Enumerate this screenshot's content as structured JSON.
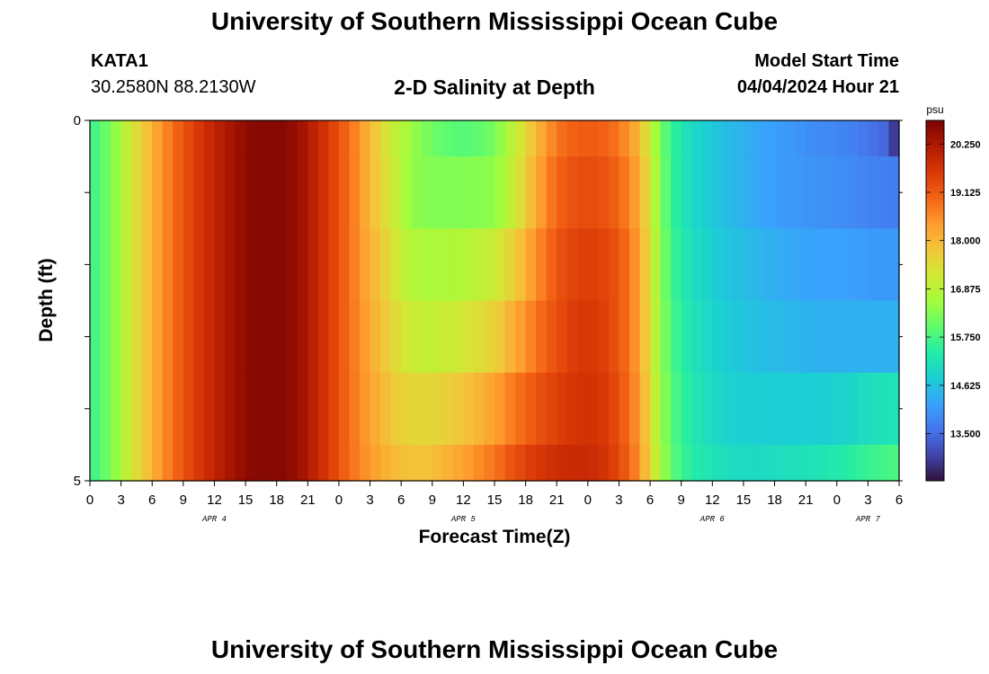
{
  "header": {
    "title": "University of Southern Mississippi Ocean Cube",
    "station_id": "KATA1",
    "station_coords": "30.2580N  88.2130W",
    "model_start_label": "Model Start Time",
    "model_start_value": "04/04/2024 Hour 21"
  },
  "footer": {
    "title": "University of Southern Mississippi Ocean Cube"
  },
  "chart_data": {
    "type": "heatmap",
    "title": "2-D Salinity at Depth",
    "xlabel": "Forecast Time(Z)",
    "ylabel": "Depth (ft)",
    "x_tick_labels": [
      "0",
      "3",
      "6",
      "9",
      "12",
      "15",
      "18",
      "21",
      "0",
      "3",
      "6",
      "9",
      "12",
      "15",
      "18",
      "21",
      "0",
      "3",
      "6",
      "9",
      "12",
      "15",
      "18",
      "21",
      "0",
      "3",
      "6"
    ],
    "day_labels": [
      {
        "label": "APR 4",
        "tick_index": 4
      },
      {
        "label": "APR 5",
        "tick_index": 12
      },
      {
        "label": "APR 6",
        "tick_index": 20
      },
      {
        "label": "APR 7",
        "tick_index": 25
      }
    ],
    "y_tick_labels": [
      "0",
      "5"
    ],
    "ylim": [
      0,
      5
    ],
    "x_range_hours": [
      0,
      78
    ],
    "colorbar": {
      "unit": "psu",
      "tick_labels": [
        "20.250",
        "19.125",
        "18.000",
        "16.875",
        "15.750",
        "14.625",
        "13.500"
      ],
      "tick_values": [
        20.25,
        19.125,
        18.0,
        16.875,
        15.75,
        14.625,
        13.5
      ],
      "range": [
        12.4,
        20.8
      ],
      "colors": [
        "#30123b",
        "#4145ab",
        "#4675ed",
        "#39a2fc",
        "#1bcfd4",
        "#24eca6",
        "#61fc6c",
        "#a4fc3b",
        "#d1e834",
        "#f3c63a",
        "#fe9b2d",
        "#f36315",
        "#d93806",
        "#b11901",
        "#7a0402"
      ]
    },
    "depth_layers": [
      {
        "depth_range": [
          0,
          0.5
        ],
        "points": [
          [
            0,
            15.6
          ],
          [
            2,
            16.2
          ],
          [
            4,
            17.2
          ],
          [
            6,
            18.1
          ],
          [
            8,
            18.9
          ],
          [
            10,
            19.5
          ],
          [
            12,
            20.0
          ],
          [
            14,
            20.4
          ],
          [
            15,
            20.6
          ],
          [
            18,
            20.7
          ],
          [
            20,
            20.5
          ],
          [
            21,
            20.2
          ],
          [
            23,
            19.6
          ],
          [
            25,
            18.9
          ],
          [
            27,
            18.0
          ],
          [
            29,
            17.1
          ],
          [
            31,
            16.5
          ],
          [
            33,
            16.1
          ],
          [
            35,
            15.9
          ],
          [
            37,
            15.9
          ],
          [
            39,
            16.2
          ],
          [
            41,
            17.0
          ],
          [
            43,
            18.0
          ],
          [
            45,
            18.8
          ],
          [
            47,
            19.1
          ],
          [
            49,
            19.1
          ],
          [
            51,
            18.8
          ],
          [
            53,
            18.0
          ],
          [
            54,
            17.0
          ],
          [
            55,
            16.2
          ],
          [
            56,
            15.6
          ],
          [
            58,
            15.0
          ],
          [
            61,
            14.6
          ],
          [
            64,
            14.3
          ],
          [
            67,
            14.1
          ],
          [
            70,
            13.9
          ],
          [
            73,
            13.8
          ],
          [
            75,
            13.6
          ],
          [
            77,
            13.4
          ],
          [
            77.5,
            12.9
          ],
          [
            78,
            12.6
          ]
        ]
      },
      {
        "depth_range": [
          0.5,
          1.5
        ],
        "points": [
          [
            0,
            15.6
          ],
          [
            2,
            16.2
          ],
          [
            4,
            17.2
          ],
          [
            6,
            18.1
          ],
          [
            8,
            18.9
          ],
          [
            10,
            19.5
          ],
          [
            12,
            20.0
          ],
          [
            14,
            20.4
          ],
          [
            15,
            20.6
          ],
          [
            18,
            20.7
          ],
          [
            20,
            20.5
          ],
          [
            21,
            20.2
          ],
          [
            23,
            19.6
          ],
          [
            25,
            18.9
          ],
          [
            27,
            18.0
          ],
          [
            29,
            17.2
          ],
          [
            30,
            16.8
          ],
          [
            31,
            16.4
          ],
          [
            33,
            16.3
          ],
          [
            36,
            16.3
          ],
          [
            39,
            16.4
          ],
          [
            41,
            17.1
          ],
          [
            43,
            18.2
          ],
          [
            45,
            19.0
          ],
          [
            47,
            19.3
          ],
          [
            49,
            19.3
          ],
          [
            51,
            19.0
          ],
          [
            53,
            18.2
          ],
          [
            54,
            17.2
          ],
          [
            55,
            16.3
          ],
          [
            56,
            15.6
          ],
          [
            58,
            15.0
          ],
          [
            61,
            14.6
          ],
          [
            64,
            14.3
          ],
          [
            67,
            14.1
          ],
          [
            70,
            14.0
          ],
          [
            73,
            13.9
          ],
          [
            75,
            13.8
          ],
          [
            78,
            13.7
          ]
        ]
      },
      {
        "depth_range": [
          1.5,
          2.5
        ],
        "points": [
          [
            0,
            15.6
          ],
          [
            2,
            16.2
          ],
          [
            4,
            17.2
          ],
          [
            6,
            18.1
          ],
          [
            8,
            18.9
          ],
          [
            10,
            19.5
          ],
          [
            12,
            20.0
          ],
          [
            14,
            20.4
          ],
          [
            15,
            20.6
          ],
          [
            18,
            20.7
          ],
          [
            20,
            20.5
          ],
          [
            21,
            20.2
          ],
          [
            23,
            19.6
          ],
          [
            25,
            18.9
          ],
          [
            27,
            18.1
          ],
          [
            29,
            17.4
          ],
          [
            30,
            17.0
          ],
          [
            31,
            16.8
          ],
          [
            33,
            16.7
          ],
          [
            36,
            16.8
          ],
          [
            39,
            17.1
          ],
          [
            41,
            17.7
          ],
          [
            43,
            18.5
          ],
          [
            45,
            19.2
          ],
          [
            47,
            19.5
          ],
          [
            49,
            19.5
          ],
          [
            51,
            19.2
          ],
          [
            53,
            18.3
          ],
          [
            54,
            17.3
          ],
          [
            55,
            16.4
          ],
          [
            56,
            15.7
          ],
          [
            58,
            15.1
          ],
          [
            61,
            14.7
          ],
          [
            64,
            14.5
          ],
          [
            67,
            14.3
          ],
          [
            70,
            14.2
          ],
          [
            73,
            14.2
          ],
          [
            75,
            14.1
          ],
          [
            78,
            14.1
          ]
        ]
      },
      {
        "depth_range": [
          2.5,
          3.5
        ],
        "points": [
          [
            0,
            15.6
          ],
          [
            2,
            16.2
          ],
          [
            4,
            17.2
          ],
          [
            6,
            18.1
          ],
          [
            8,
            18.9
          ],
          [
            10,
            19.5
          ],
          [
            12,
            20.0
          ],
          [
            14,
            20.4
          ],
          [
            15,
            20.6
          ],
          [
            18,
            20.7
          ],
          [
            20,
            20.5
          ],
          [
            21,
            20.2
          ],
          [
            23,
            19.6
          ],
          [
            25,
            18.9
          ],
          [
            27,
            18.2
          ],
          [
            29,
            17.6
          ],
          [
            30,
            17.3
          ],
          [
            31,
            17.1
          ],
          [
            33,
            17.0
          ],
          [
            36,
            17.2
          ],
          [
            39,
            17.6
          ],
          [
            41,
            18.2
          ],
          [
            43,
            18.8
          ],
          [
            45,
            19.3
          ],
          [
            47,
            19.6
          ],
          [
            49,
            19.6
          ],
          [
            51,
            19.2
          ],
          [
            53,
            18.3
          ],
          [
            54,
            17.3
          ],
          [
            55,
            16.5
          ],
          [
            56,
            15.8
          ],
          [
            58,
            15.2
          ],
          [
            61,
            14.8
          ],
          [
            64,
            14.6
          ],
          [
            67,
            14.5
          ],
          [
            70,
            14.4
          ],
          [
            73,
            14.4
          ],
          [
            75,
            14.4
          ],
          [
            78,
            14.4
          ]
        ]
      },
      {
        "depth_range": [
          3.5,
          4.5
        ],
        "points": [
          [
            0,
            15.6
          ],
          [
            2,
            16.2
          ],
          [
            4,
            17.2
          ],
          [
            6,
            18.1
          ],
          [
            8,
            18.9
          ],
          [
            10,
            19.5
          ],
          [
            12,
            20.0
          ],
          [
            14,
            20.4
          ],
          [
            15,
            20.6
          ],
          [
            18,
            20.7
          ],
          [
            20,
            20.5
          ],
          [
            21,
            20.2
          ],
          [
            23,
            19.6
          ],
          [
            25,
            18.9
          ],
          [
            27,
            18.3
          ],
          [
            29,
            17.8
          ],
          [
            30,
            17.6
          ],
          [
            31,
            17.5
          ],
          [
            33,
            17.5
          ],
          [
            36,
            17.8
          ],
          [
            39,
            18.3
          ],
          [
            41,
            18.8
          ],
          [
            43,
            19.2
          ],
          [
            45,
            19.5
          ],
          [
            47,
            19.7
          ],
          [
            49,
            19.7
          ],
          [
            51,
            19.3
          ],
          [
            53,
            18.4
          ],
          [
            54,
            17.4
          ],
          [
            55,
            16.6
          ],
          [
            56,
            15.9
          ],
          [
            58,
            15.3
          ],
          [
            61,
            14.9
          ],
          [
            64,
            14.8
          ],
          [
            67,
            14.8
          ],
          [
            70,
            14.8
          ],
          [
            73,
            14.9
          ],
          [
            75,
            15.1
          ],
          [
            78,
            15.2
          ]
        ]
      },
      {
        "depth_range": [
          4.5,
          5.0
        ],
        "points": [
          [
            0,
            15.6
          ],
          [
            2,
            16.2
          ],
          [
            4,
            17.2
          ],
          [
            6,
            18.1
          ],
          [
            8,
            18.9
          ],
          [
            10,
            19.5
          ],
          [
            12,
            20.0
          ],
          [
            14,
            20.4
          ],
          [
            15,
            20.6
          ],
          [
            18,
            20.7
          ],
          [
            20,
            20.5
          ],
          [
            21,
            20.2
          ],
          [
            23,
            19.6
          ],
          [
            25,
            18.9
          ],
          [
            27,
            18.4
          ],
          [
            29,
            18.0
          ],
          [
            30,
            17.9
          ],
          [
            31,
            17.8
          ],
          [
            33,
            17.9
          ],
          [
            36,
            18.3
          ],
          [
            39,
            18.8
          ],
          [
            41,
            19.3
          ],
          [
            43,
            19.6
          ],
          [
            45,
            19.8
          ],
          [
            47,
            19.9
          ],
          [
            49,
            19.8
          ],
          [
            51,
            19.4
          ],
          [
            53,
            18.5
          ],
          [
            54,
            17.5
          ],
          [
            55,
            16.7
          ],
          [
            56,
            16.0
          ],
          [
            58,
            15.4
          ],
          [
            61,
            15.1
          ],
          [
            64,
            15.0
          ],
          [
            67,
            15.1
          ],
          [
            70,
            15.2
          ],
          [
            73,
            15.4
          ],
          [
            75,
            15.6
          ],
          [
            78,
            15.8
          ]
        ]
      }
    ]
  }
}
